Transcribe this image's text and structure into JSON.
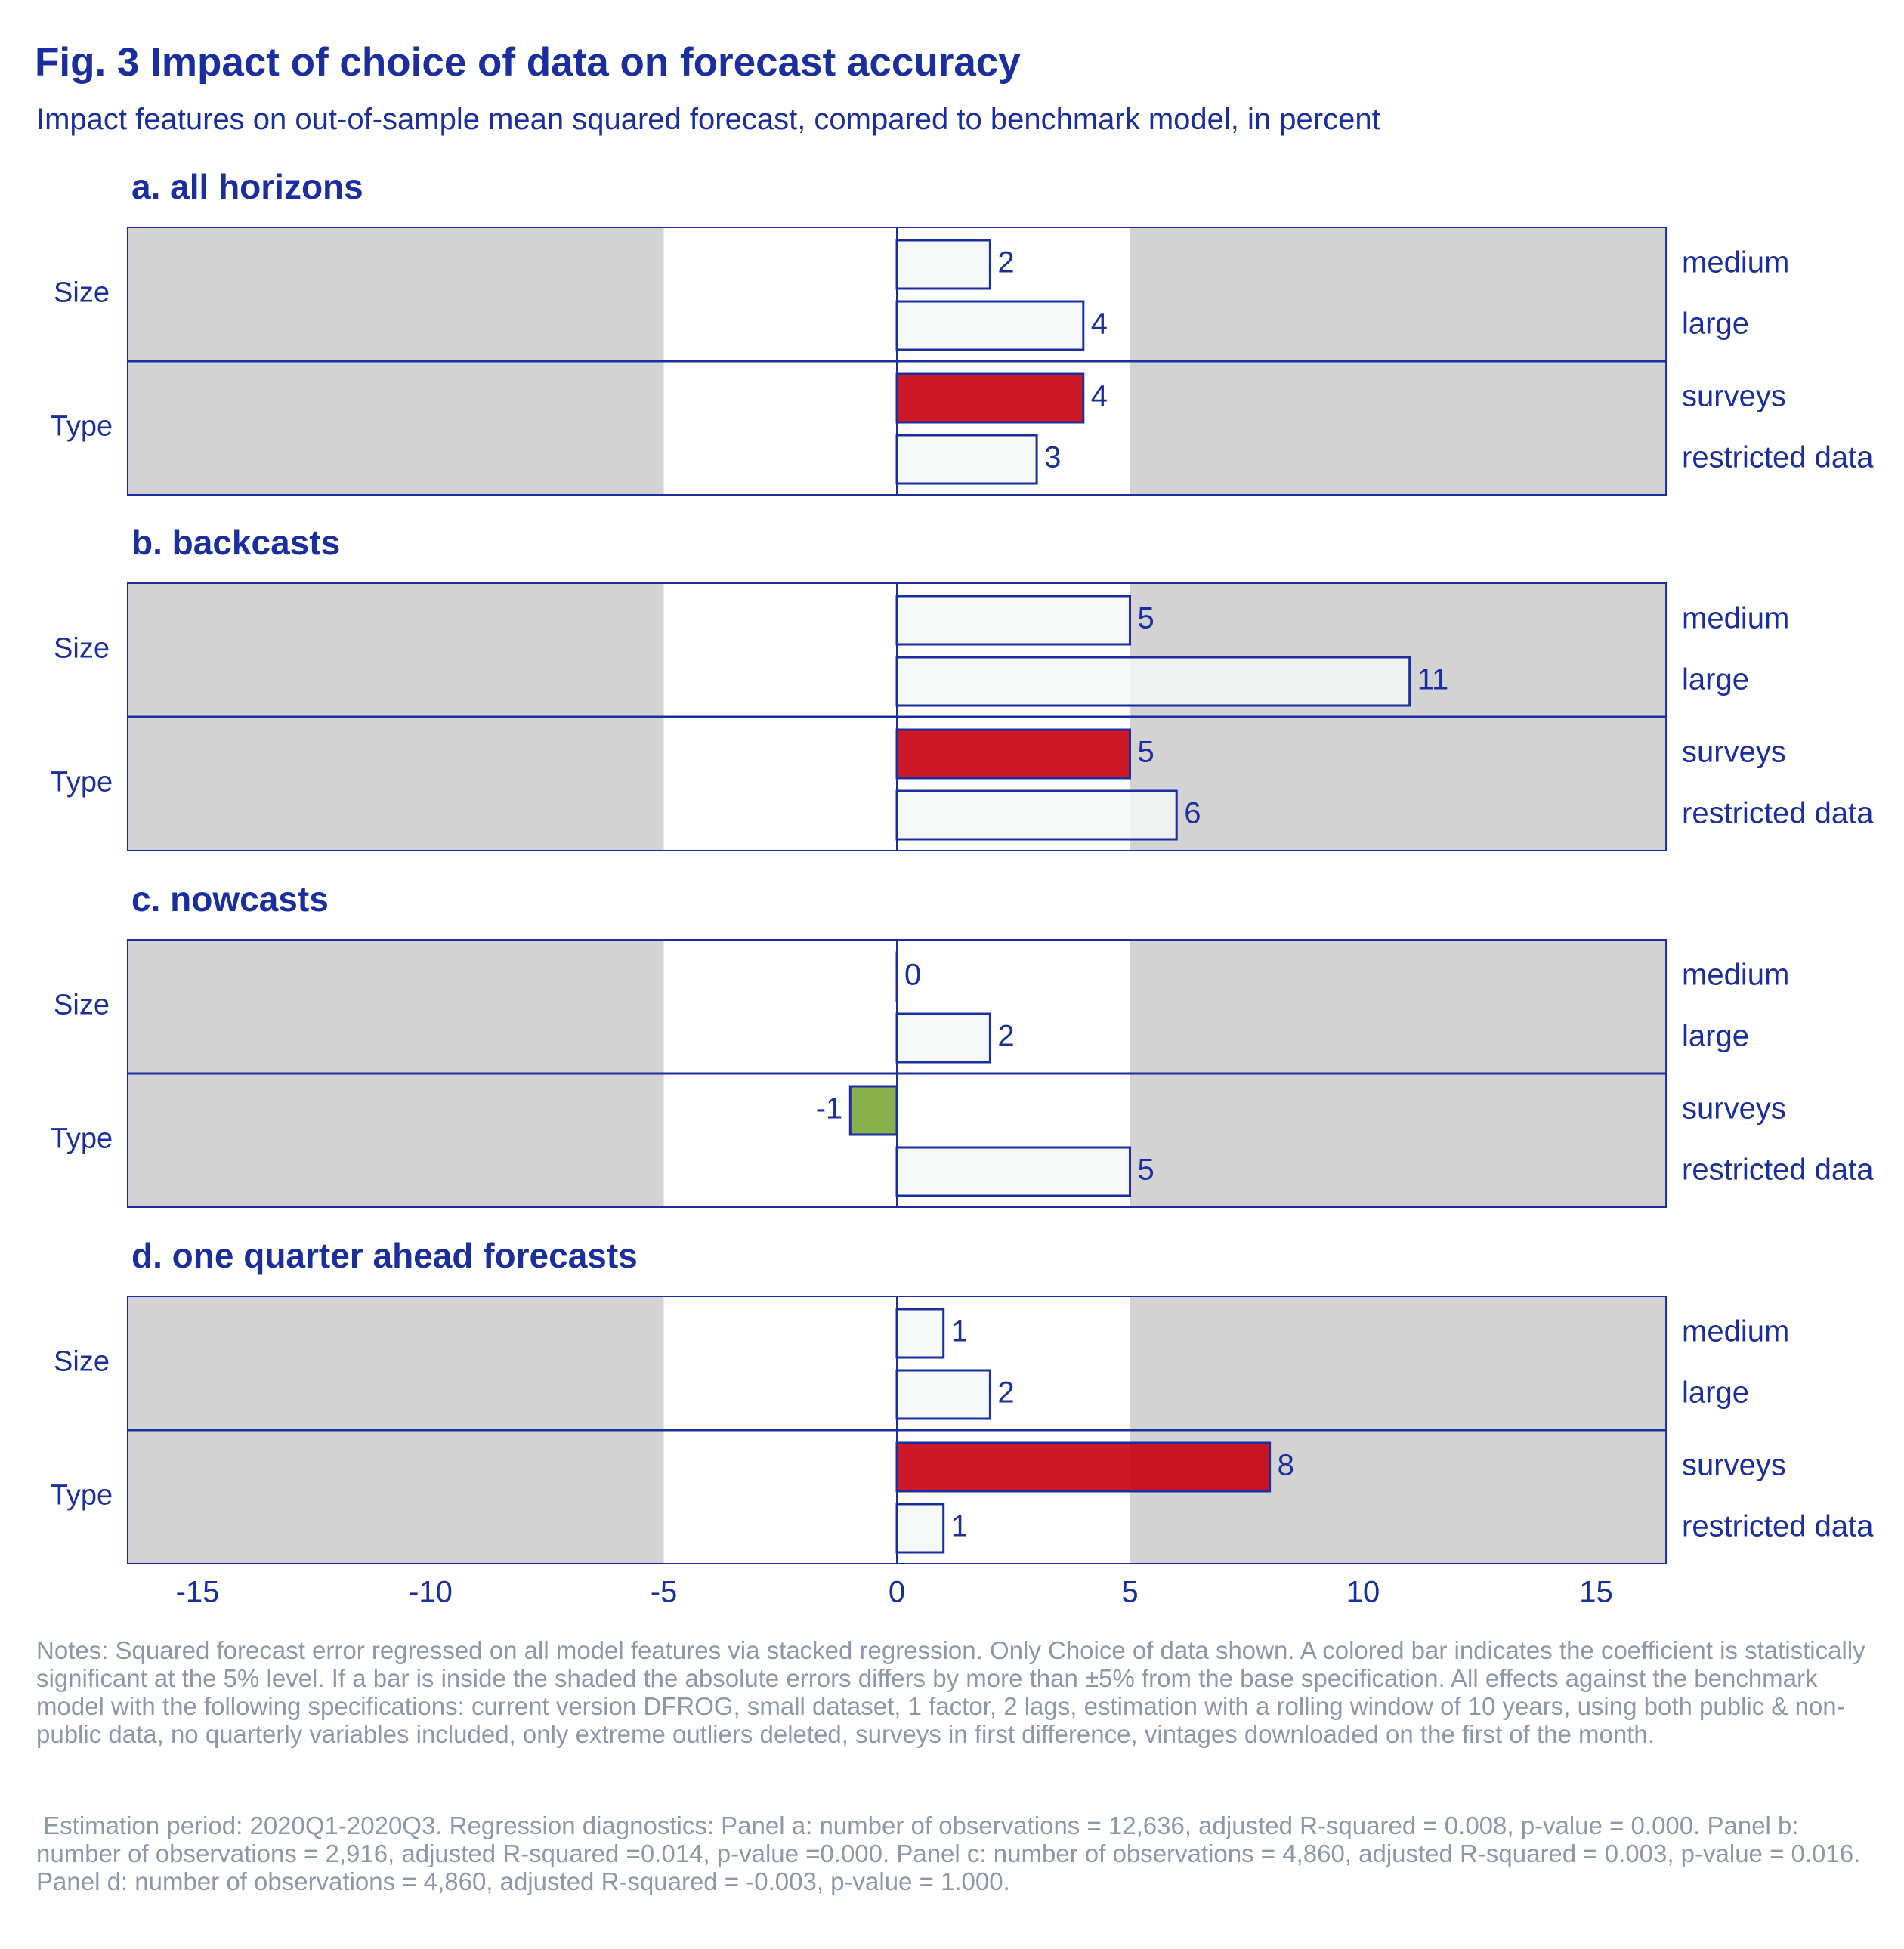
{
  "title": "Fig. 3 Impact of choice of data on forecast accuracy",
  "subtitle": "Impact features on out-of-sample mean squared forecast, compared to benchmark model, in percent",
  "notes": "Notes: Squared forecast error regressed on all model features via stacked regression. Only Choice of data shown. A colored bar indicates the coefficient is statistically significant at the 5% level. If a bar is inside the shaded the absolute errors differs by more than ±5% from the base specification. All effects against the benchmark model with the following specifications: current version DFROG, small dataset, 1 factor, 2 lags, estimation with a rolling window of 10 years, using both public & non-public data, no quarterly variables included, only extreme outliers deleted, surveys in first difference, vintages downloaded on the first of the month.",
  "diagnostics": " Estimation period: 2020Q1-2020Q3. Regression diagnostics: Panel a: number of observations = 12,636, adjusted R-squared = 0.008, p-value = 0.000. Panel b: number of observations = 2,916, adjusted R-squared =0.014, p-value =0.000. Panel c: number of observations = 4,860, adjusted R-squared = 0.003, p-value = 0.016. Panel d: number of observations = 4,860, adjusted R-squared = -0.003, p-value = 1.000.",
  "colors": {
    "text": "#1a2ea0",
    "bar_outline": "#1a2ea0",
    "bar_insignificant": "#f5f7f7",
    "significant_decrease": "#7ba93a",
    "significant_increase": "#c8000f",
    "shaded_zone": "#d3d3d3",
    "notes_text": "#8e97a8"
  },
  "chart_data": {
    "type": "bar",
    "orientation": "horizontal",
    "xlim": [
      -16.5,
      16.5
    ],
    "xticks": [
      -15,
      -10,
      -5,
      0,
      5,
      10,
      15
    ],
    "shaded_beyond": 5,
    "groups": [
      {
        "label": "Size",
        "rows": [
          "medium",
          "large"
        ]
      },
      {
        "label": "Type",
        "rows": [
          "surveys",
          "restricted data"
        ]
      }
    ],
    "panels": [
      {
        "title": "a. all horizons",
        "values": [
          2,
          4,
          4,
          3
        ],
        "significant": [
          false,
          false,
          true,
          false
        ]
      },
      {
        "title": "b. backcasts",
        "values": [
          5,
          11,
          5,
          6
        ],
        "significant": [
          false,
          false,
          true,
          false
        ]
      },
      {
        "title": "c. nowcasts",
        "values": [
          0,
          2,
          -1,
          5
        ],
        "significant": [
          false,
          false,
          true,
          false
        ]
      },
      {
        "title": "d. one quarter ahead forecasts",
        "values": [
          1,
          2,
          8,
          1
        ],
        "significant": [
          false,
          false,
          true,
          false
        ]
      }
    ]
  }
}
